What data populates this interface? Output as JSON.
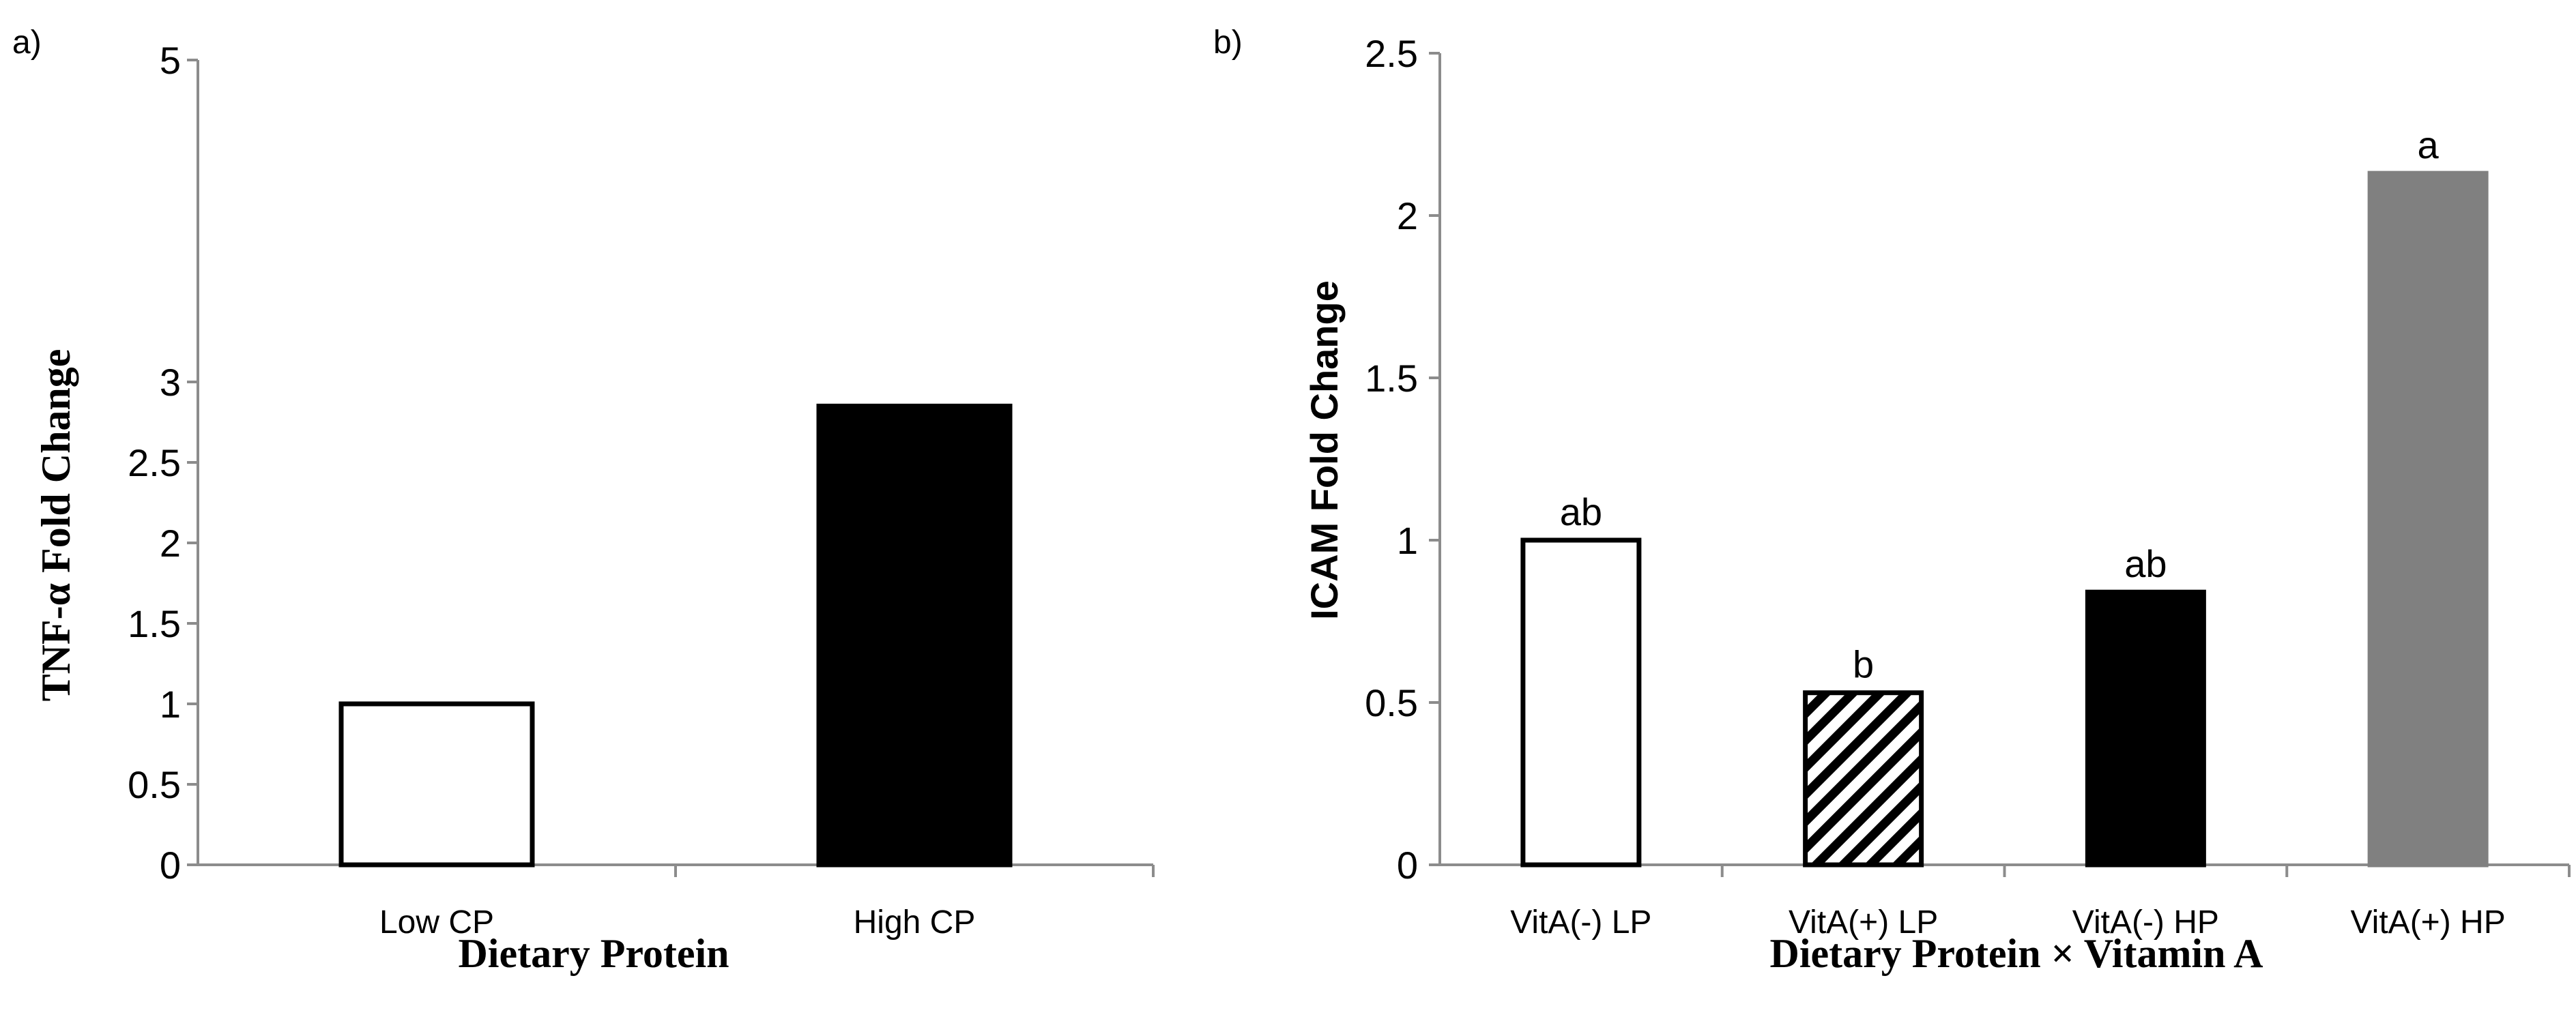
{
  "chart_data": [
    {
      "type": "bar",
      "panel_label": "a)",
      "title": "",
      "xlabel": "Dietary Protein",
      "ylabel": "TNF-α Fold Change",
      "ylim": [
        0,
        5
      ],
      "yticks": [
        0,
        0.5,
        1,
        1.5,
        2,
        2.5,
        3,
        5
      ],
      "ytick_labels": [
        "0",
        "0.5",
        "1",
        "1.5",
        "2",
        "2.5",
        "3",
        "5"
      ],
      "categories": [
        "Low CP",
        "High CP"
      ],
      "values": [
        1.0,
        2.85
      ],
      "fills": [
        "#ffffff",
        "#000000"
      ],
      "patterns": [
        "none",
        "none"
      ],
      "data_labels": [
        "",
        ""
      ],
      "grid": false
    },
    {
      "type": "bar",
      "panel_label": "b)",
      "title": "",
      "xlabel": "Dietary Protein × Vitamin A",
      "ylabel": "ICAM Fold Change",
      "ylim": [
        0,
        2.5
      ],
      "yticks": [
        0,
        0.5,
        1,
        1.5,
        2,
        2.5
      ],
      "ytick_labels": [
        "0",
        "0.5",
        "1",
        "1.5",
        "2",
        "2.5"
      ],
      "categories": [
        "VitA(-) LP",
        "VitA(+) LP",
        "VitA(-) HP",
        "VitA(+) HP"
      ],
      "values": [
        1.0,
        0.53,
        0.84,
        2.13
      ],
      "fills": [
        "#ffffff",
        "#ffffff",
        "#000000",
        "#808080"
      ],
      "patterns": [
        "none",
        "hatch",
        "none",
        "none"
      ],
      "data_labels": [
        "ab",
        "b",
        "ab",
        "a"
      ],
      "grid": false
    }
  ]
}
